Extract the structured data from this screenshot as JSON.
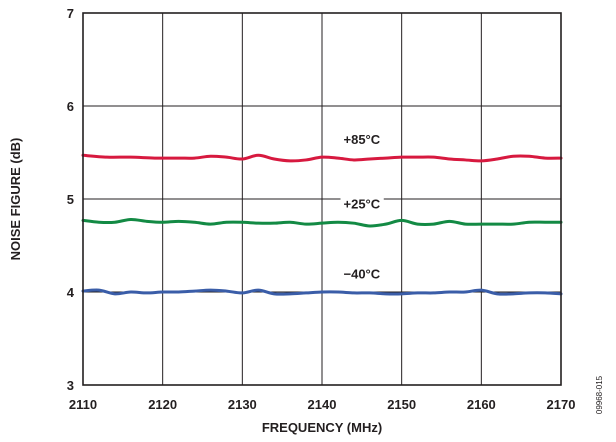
{
  "chart_data": {
    "type": "line",
    "title": "",
    "xlabel": "FREQUENCY (MHz)",
    "ylabel": "NOISE FIGURE (dB)",
    "xlim": [
      2110,
      2170
    ],
    "ylim": [
      3,
      7
    ],
    "xticks": [
      2110,
      2120,
      2130,
      2140,
      2150,
      2160,
      2170
    ],
    "yticks": [
      3,
      4,
      5,
      6,
      7
    ],
    "grid": true,
    "series": [
      {
        "name": "+85°C",
        "color": "#d7193f",
        "x": [
          2110,
          2113,
          2116,
          2119,
          2122,
          2124,
          2126,
          2128,
          2130,
          2132,
          2134,
          2136,
          2138,
          2140,
          2142,
          2144,
          2146,
          2148,
          2150,
          2152,
          2154,
          2156,
          2158,
          2160,
          2162,
          2164,
          2166,
          2168,
          2170
        ],
        "values": [
          5.47,
          5.45,
          5.45,
          5.44,
          5.44,
          5.44,
          5.46,
          5.45,
          5.43,
          5.47,
          5.43,
          5.41,
          5.42,
          5.45,
          5.44,
          5.42,
          5.43,
          5.44,
          5.45,
          5.45,
          5.45,
          5.43,
          5.42,
          5.41,
          5.43,
          5.46,
          5.46,
          5.44,
          5.44
        ]
      },
      {
        "name": "+25°C",
        "color": "#138a44",
        "x": [
          2110,
          2112,
          2114,
          2116,
          2118,
          2120,
          2122,
          2124,
          2126,
          2128,
          2130,
          2132,
          2134,
          2136,
          2138,
          2140,
          2142,
          2144,
          2146,
          2148,
          2150,
          2152,
          2154,
          2156,
          2158,
          2160,
          2162,
          2164,
          2166,
          2168,
          2170
        ],
        "values": [
          4.77,
          4.75,
          4.75,
          4.78,
          4.76,
          4.75,
          4.76,
          4.75,
          4.73,
          4.75,
          4.75,
          4.74,
          4.74,
          4.75,
          4.73,
          4.74,
          4.75,
          4.74,
          4.71,
          4.73,
          4.77,
          4.73,
          4.73,
          4.76,
          4.73,
          4.73,
          4.73,
          4.73,
          4.75,
          4.75,
          4.75
        ]
      },
      {
        "name": "−40°C",
        "color": "#3a5da8",
        "x": [
          2110,
          2112,
          2114,
          2116,
          2118,
          2120,
          2122,
          2124,
          2126,
          2128,
          2130,
          2132,
          2134,
          2136,
          2138,
          2140,
          2142,
          2144,
          2146,
          2148,
          2150,
          2152,
          2154,
          2156,
          2158,
          2160,
          2162,
          2164,
          2166,
          2168,
          2170
        ],
        "values": [
          4.01,
          4.02,
          3.98,
          4.0,
          3.99,
          4.0,
          4.0,
          4.01,
          4.02,
          4.01,
          3.99,
          4.02,
          3.98,
          3.98,
          3.99,
          4.0,
          4.0,
          3.99,
          3.99,
          3.98,
          3.98,
          3.99,
          3.99,
          4.0,
          4.0,
          4.02,
          3.98,
          3.98,
          3.99,
          3.99,
          3.98
        ]
      }
    ],
    "annotations": [
      {
        "text": "+85°C",
        "series": "+85°C"
      },
      {
        "text": "+25°C",
        "series": "+25°C"
      },
      {
        "text": "−40°C",
        "series": "−40°C"
      }
    ],
    "figure_id": "09968-015"
  }
}
